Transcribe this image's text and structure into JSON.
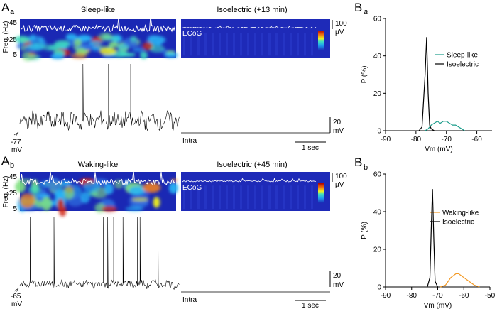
{
  "panels": {
    "Aa": {
      "letter": "A",
      "sub": "a",
      "left_title": "Sleep-like",
      "right_title": "Isoelectric (+13 min)",
      "vm_label": "-77",
      "vm_unit": "mV"
    },
    "Ab": {
      "letter": "A",
      "sub": "b",
      "left_title": "Waking-like",
      "right_title": "Isoelectric (+45 min)",
      "vm_label": "-65",
      "vm_unit": "mV"
    },
    "Ba": {
      "letter": "B",
      "sub": "a"
    },
    "Bb": {
      "letter": "B",
      "sub": "b"
    }
  },
  "labels": {
    "freq_axis": "Freq. (Hz)",
    "freq_ticks": [
      "45",
      "25",
      "5"
    ],
    "ecog": "ECoG",
    "intra": "Intra",
    "ecog_scale_value": "100",
    "ecog_scale_unit": "µV",
    "intra_scale_value": "20",
    "intra_scale_unit": "mV",
    "time_scale": "1 sec"
  },
  "colors": {
    "sleep": "#1a9c8a",
    "waking": "#f39a26",
    "isoelectric": "#000000",
    "spectrogram_bg": "#1a28b4"
  },
  "chart_data": [
    {
      "type": "line",
      "id": "Ba",
      "xlabel": "Vm (mV)",
      "ylabel": "P (%)",
      "xlim": [
        -90,
        -55
      ],
      "ylim": [
        0,
        60
      ],
      "xticks": [
        "-90",
        "-80",
        "-70",
        "-60"
      ],
      "yticks": [
        "0",
        "20",
        "40",
        "60"
      ],
      "series": [
        {
          "name": "Sleep-like",
          "color": "#1a9c8a",
          "x": [
            -77,
            -76,
            -75,
            -74,
            -73,
            -72,
            -71,
            -70,
            -69,
            -68,
            -67,
            -66,
            -65,
            -64
          ],
          "y": [
            0,
            1,
            3,
            4,
            5,
            4,
            5,
            5,
            4,
            3,
            3,
            2,
            1,
            0
          ]
        },
        {
          "name": "Isoelectric",
          "color": "#000000",
          "x": [
            -79,
            -78,
            -77,
            -76.5,
            -76,
            -75.5,
            -75,
            -74
          ],
          "y": [
            0,
            2,
            30,
            50,
            20,
            3,
            1,
            0
          ]
        }
      ]
    },
    {
      "type": "line",
      "id": "Bb",
      "xlabel": "Vm (mV)",
      "ylabel": "P (%)",
      "xlim": [
        -90,
        -50
      ],
      "ylim": [
        0,
        60
      ],
      "xticks": [
        "-90",
        "-80",
        "-70",
        "-60",
        "-50"
      ],
      "yticks": [
        "0",
        "20",
        "40",
        "60"
      ],
      "series": [
        {
          "name": "Waking-like",
          "color": "#f39a26",
          "x": [
            -69,
            -67,
            -66,
            -65,
            -64,
            -63,
            -62,
            -61,
            -60,
            -59,
            -58,
            -57,
            -56,
            -54
          ],
          "y": [
            0,
            1,
            3,
            5,
            6,
            7,
            7,
            6,
            5,
            4,
            3,
            2,
            1,
            0
          ]
        },
        {
          "name": "Isoelectric",
          "color": "#000000",
          "x": [
            -74,
            -73,
            -72.5,
            -72,
            -71.5,
            -71,
            -70
          ],
          "y": [
            0,
            5,
            30,
            52,
            25,
            3,
            0
          ]
        }
      ]
    }
  ]
}
